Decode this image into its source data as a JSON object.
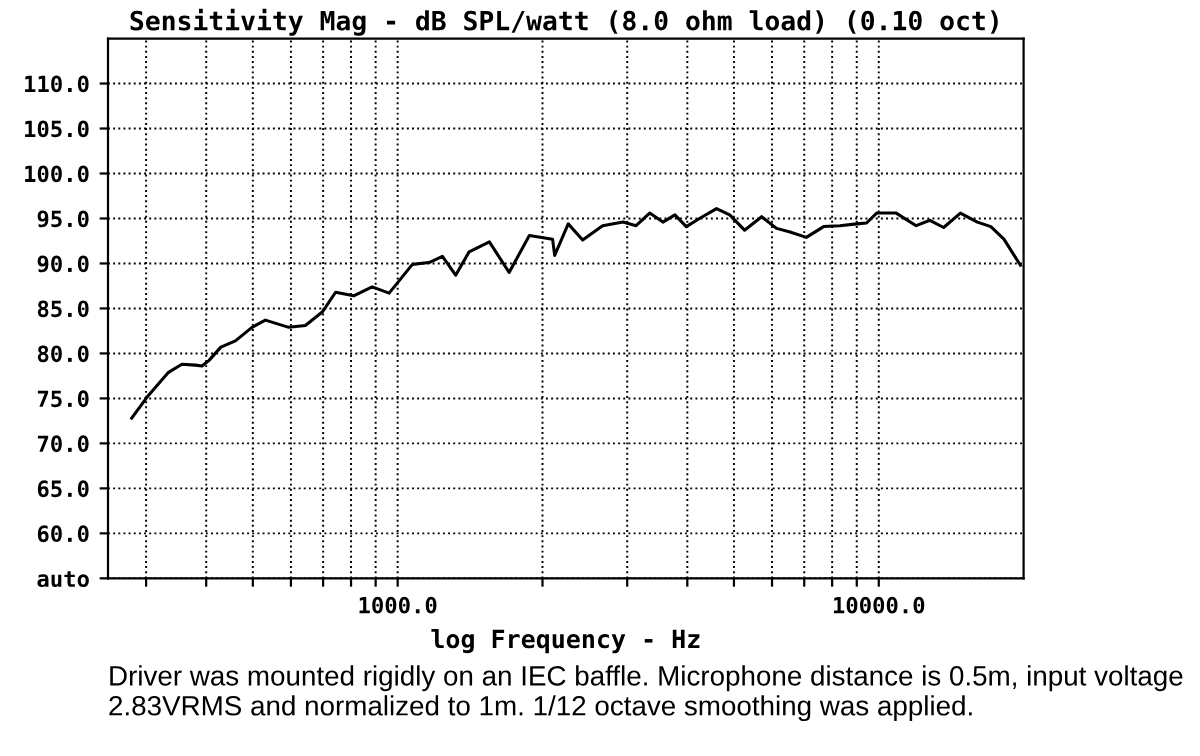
{
  "chart_data": {
    "type": "line",
    "title": "Sensitivity Mag - dB SPL/watt (8.0 ohm load) (0.10 oct)",
    "xlabel": "log Frequency - Hz",
    "log": "x",
    "grid": true,
    "marker": "none",
    "line_style": "solid",
    "xlim": [
      250,
      20000
    ],
    "ylim": [
      55,
      115
    ],
    "xticks": [
      {
        "value": 300,
        "label": null
      },
      {
        "value": 400,
        "label": null
      },
      {
        "value": 500,
        "label": null
      },
      {
        "value": 600,
        "label": null
      },
      {
        "value": 700,
        "label": null
      },
      {
        "value": 800,
        "label": null
      },
      {
        "value": 900,
        "label": null
      },
      {
        "value": 1000,
        "label": "1000.0"
      },
      {
        "value": 2000,
        "label": null
      },
      {
        "value": 3000,
        "label": null
      },
      {
        "value": 4000,
        "label": null
      },
      {
        "value": 5000,
        "label": null
      },
      {
        "value": 6000,
        "label": null
      },
      {
        "value": 7000,
        "label": null
      },
      {
        "value": 8000,
        "label": null
      },
      {
        "value": 9000,
        "label": null
      },
      {
        "value": 10000,
        "label": "10000.0"
      }
    ],
    "yticks": [
      {
        "value": 55,
        "label": "auto"
      },
      {
        "value": 60,
        "label": "60.0"
      },
      {
        "value": 65,
        "label": "65.0"
      },
      {
        "value": 70,
        "label": "70.0"
      },
      {
        "value": 75,
        "label": "75.0"
      },
      {
        "value": 80,
        "label": "80.0"
      },
      {
        "value": 85,
        "label": "85.0"
      },
      {
        "value": 90,
        "label": "90.0"
      },
      {
        "value": 95,
        "label": "95.0"
      },
      {
        "value": 100,
        "label": "100.0"
      },
      {
        "value": 105,
        "label": "105.0"
      },
      {
        "value": 110,
        "label": "110.0"
      }
    ],
    "x": [
      280,
      303,
      334,
      356,
      380,
      392,
      405,
      429,
      460,
      498,
      531,
      594,
      643,
      697,
      743,
      810,
      885,
      960,
      1073,
      1162,
      1239,
      1320,
      1408,
      1551,
      1705,
      1878,
      2099,
      2120,
      2262,
      2424,
      2667,
      2940,
      3130,
      3340,
      3560,
      3770,
      3980,
      4240,
      4600,
      4900,
      5260,
      5710,
      6130,
      6540,
      7070,
      7680,
      8300,
      8990,
      9430,
      9900,
      10870,
      11960,
      12770,
      13640,
      14780,
      16030,
      17100,
      18200,
      19700
    ],
    "series": [
      {
        "color": "#000000",
        "values": [
          72.8,
          75.3,
          77.9,
          78.8,
          78.7,
          78.6,
          79.2,
          80.7,
          81.4,
          82.9,
          83.7,
          82.9,
          83.1,
          84.6,
          86.8,
          86.4,
          87.4,
          86.7,
          89.9,
          90.1,
          90.8,
          88.7,
          91.3,
          92.4,
          89.0,
          93.1,
          92.7,
          90.9,
          94.4,
          92.6,
          94.2,
          94.6,
          94.2,
          95.6,
          94.6,
          95.4,
          94.1,
          95.0,
          96.1,
          95.4,
          93.7,
          95.2,
          93.9,
          93.5,
          92.9,
          94.1,
          94.2,
          94.4,
          94.5,
          95.6,
          95.6,
          94.2,
          94.8,
          94.0,
          95.6,
          94.6,
          94.1,
          92.7,
          89.8
        ]
      }
    ],
    "annotations": [
      "Driver was mounted rigidly on an IEC baffle. Microphone distance is 0.5m, input voltage 2.83VRMS and normalized to 1m. 1/12 octave smoothing was applied."
    ]
  }
}
